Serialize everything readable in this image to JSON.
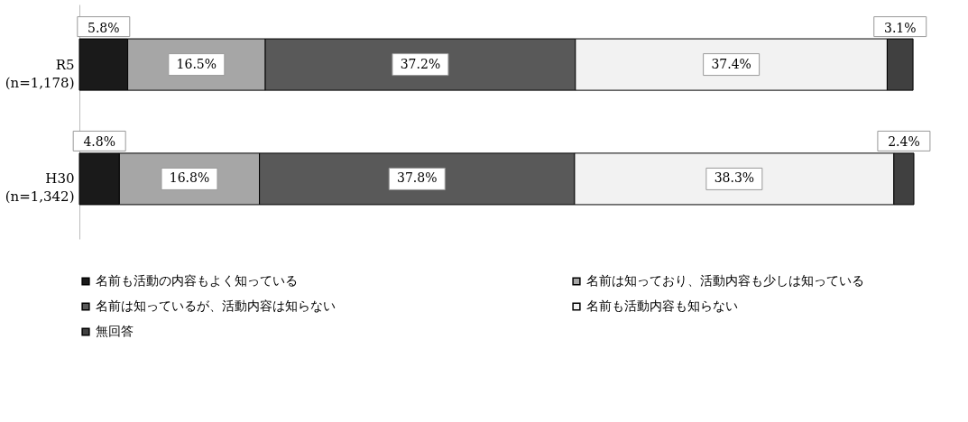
{
  "chart_data": {
    "type": "bar",
    "orientation": "horizontal",
    "stacked": true,
    "legend": "bottom",
    "categories": [
      "R5\n(n=1,178)",
      "H30\n(n=1,342)"
    ],
    "series": [
      {
        "name": "名前も活動の内容もよく知っている",
        "color": "#1a1a1a",
        "values": [
          5.8,
          4.8
        ],
        "value_labels": [
          "5.8%",
          "4.8%"
        ]
      },
      {
        "name": "名前は知っており、活動内容も少しは知っている",
        "color": "#a6a6a6",
        "values": [
          16.5,
          16.8
        ],
        "value_labels": [
          "16.5%",
          "16.8%"
        ]
      },
      {
        "name": "名前は知っているが、活動内容は知らない",
        "color": "#595959",
        "values": [
          37.2,
          37.8
        ],
        "value_labels": [
          "37.2%",
          "37.8%"
        ]
      },
      {
        "name": "名前も活動内容も知らない",
        "color": "#f2f2f2",
        "values": [
          37.4,
          38.3
        ],
        "value_labels": [
          "37.4%",
          "38.3%"
        ]
      },
      {
        "name": "無回答",
        "color": "#404040",
        "values": [
          3.1,
          2.4
        ],
        "value_labels": [
          "3.1%",
          "2.4%"
        ]
      }
    ]
  }
}
